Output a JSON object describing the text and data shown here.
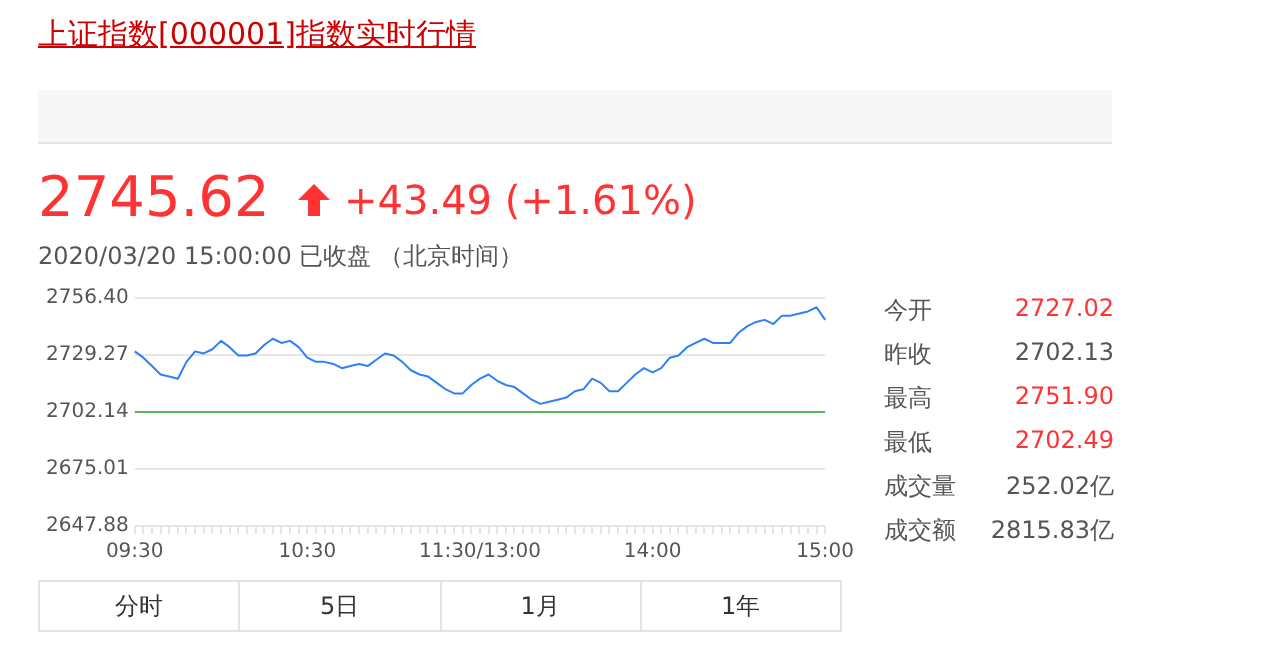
{
  "chart_data": {
    "type": "line",
    "title": "上证指数[000001]指数实时行情",
    "categories": [
      "09:30",
      null,
      null,
      null,
      null,
      null,
      null,
      null,
      null,
      null,
      null,
      null,
      null,
      null,
      null,
      null,
      null,
      null,
      null,
      null,
      "10:30",
      null,
      null,
      null,
      null,
      null,
      null,
      null,
      null,
      null,
      null,
      null,
      null,
      null,
      null,
      null,
      null,
      null,
      null,
      null,
      "11:30/13:00",
      null,
      null,
      null,
      null,
      null,
      null,
      null,
      null,
      null,
      null,
      null,
      null,
      null,
      null,
      null,
      null,
      null,
      null,
      null,
      "14:00",
      null,
      null,
      null,
      null,
      null,
      null,
      null,
      null,
      null,
      null,
      null,
      null,
      null,
      null,
      null,
      null,
      null,
      null,
      null,
      "15:00"
    ],
    "series": [
      {
        "color": "#2f80f7",
        "values": [
          2731,
          2728,
          2724,
          2720,
          2719,
          2718,
          2726,
          2731,
          2730,
          2732,
          2736,
          2733,
          2729,
          2729,
          2730,
          2734,
          2737,
          2735,
          2736,
          2733,
          2728,
          2726,
          2726,
          2725,
          2723,
          2724,
          2725,
          2724,
          2727,
          2730,
          2729,
          2726,
          2722,
          2720,
          2719,
          2716,
          2713,
          2711,
          2711,
          2715,
          2718,
          2720,
          2717,
          2715,
          2714,
          2711,
          2708,
          2706,
          2707,
          2708,
          2709,
          2712,
          2713,
          2718,
          2716,
          2712,
          2712,
          2716,
          2720,
          2723,
          2721,
          2723,
          2728,
          2729,
          2733,
          2735,
          2737,
          2735,
          2735,
          2735,
          2740,
          2743,
          2745,
          2746,
          2744,
          2748,
          2748,
          2749,
          2750,
          2752,
          2746
        ]
      }
    ],
    "ylim": [
      2647.88,
      2756.4
    ],
    "yticks": [
      2647.88,
      2675.01,
      2702.14,
      2729.27,
      {
        "value": 2756.4,
        "label": "2756.40"
      }
    ],
    "ref_lines": [
      {
        "axis": "y",
        "value": 2702.14,
        "color": "#5cb85c"
      }
    ],
    "grid": "y",
    "legend": false,
    "marker": "none",
    "line_style": "solid",
    "annotations": [
      "2745.62",
      "+43.49 (+1.61%)",
      "2020/03/20 15:00:00   已收盘 （北京时间）",
      "今开",
      "2727.02",
      "昨收",
      "2702.13",
      "最高",
      "2751.90",
      "最低",
      "2702.49",
      "成交量",
      "252.02亿",
      "成交额",
      "2815.83亿",
      "分时",
      "5日",
      "1月",
      "1年"
    ]
  }
}
